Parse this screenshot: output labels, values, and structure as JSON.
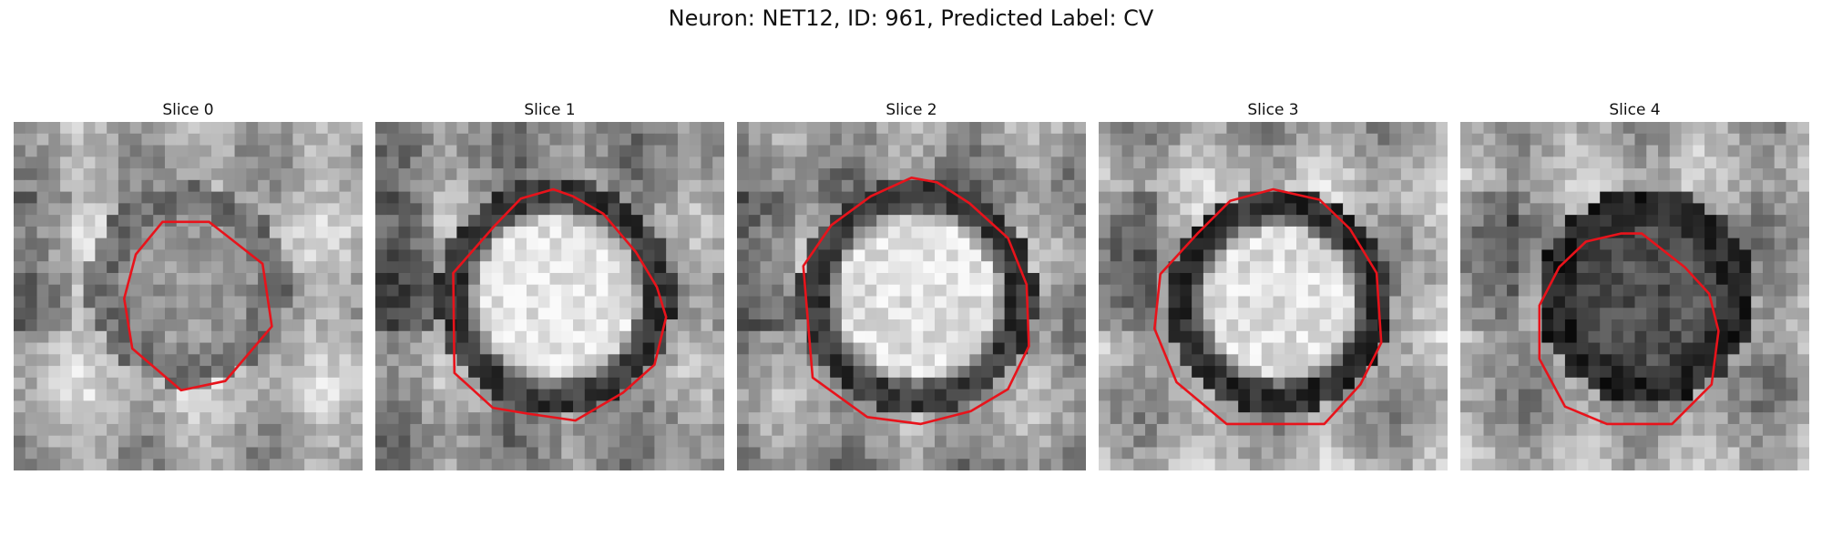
{
  "figure": {
    "title": "Neuron: NET12, ID: 961, Predicted Label: CV"
  },
  "panels": [
    {
      "label": "Slice 0",
      "center_brightness": "medium",
      "ring_darkness": "light"
    },
    {
      "label": "Slice 1",
      "center_brightness": "bright",
      "ring_darkness": "dark"
    },
    {
      "label": "Slice 2",
      "center_brightness": "bright",
      "ring_darkness": "dark"
    },
    {
      "label": "Slice 3",
      "center_brightness": "bright",
      "ring_darkness": "dark"
    },
    {
      "label": "Slice 4",
      "center_brightness": "dark",
      "ring_darkness": "very-dark"
    }
  ],
  "colors": {
    "contour": "#e8131b",
    "background": "#ffffff"
  }
}
